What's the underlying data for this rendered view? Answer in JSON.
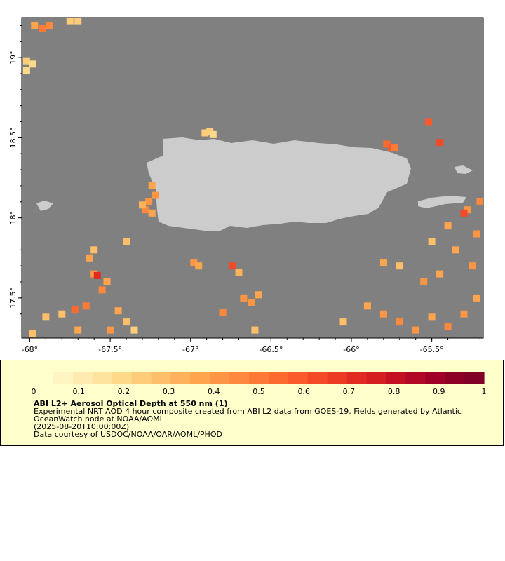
{
  "map": {
    "lon_range": [
      -68.05,
      -65.18
    ],
    "lat_range": [
      17.25,
      19.25
    ],
    "lon_ticks": [
      -68,
      -67.5,
      -67,
      -66.5,
      -66,
      -65.5
    ],
    "lon_tick_labels": [
      "-68°",
      "-67.5°",
      "-67°",
      "-66.5°",
      "-66°",
      "-65.5°"
    ],
    "lat_ticks": [
      17.5,
      18,
      18.5,
      19
    ],
    "lat_tick_labels": [
      "17.5°",
      "18°",
      "18.5°",
      "19°"
    ],
    "colors": {
      "ocean_nodata": "#808080",
      "land": "#cccccc",
      "panel_background": "#ffffcc"
    }
  },
  "colorbar": {
    "min": 0,
    "max": 1,
    "tick_values": [
      0,
      0.1,
      0.2,
      0.3,
      0.4,
      0.5,
      0.6,
      0.7,
      0.8,
      0.9,
      1
    ],
    "tick_labels": [
      "0",
      "0.1",
      "0.2",
      "0.3",
      "0.4",
      "0.5",
      "0.6",
      "0.7",
      "0.8",
      "0.9",
      "1"
    ],
    "colors": [
      "#ffffcc",
      "#fff5c2",
      "#ffebb0",
      "#fee39e",
      "#fed98a",
      "#fecc7a",
      "#febf6a",
      "#feb25c",
      "#fea54e",
      "#fd9644",
      "#fd883e",
      "#fd7a36",
      "#fc6a30",
      "#fa5a2c",
      "#f44a27",
      "#ec3a23",
      "#e22b20",
      "#d41e20",
      "#c41122",
      "#b20826",
      "#a00026",
      "#8c0026",
      "#800026"
    ]
  },
  "legend": {
    "title": "ABI L2+ Aerosol Optical Depth at 550 nm (1)",
    "line1": "Experimental NRT AOD 4 hour composite created from ABI L2 data from GOES-19. Fields generated by Atlantic",
    "line2": "OceanWatch node at NOAA/AOML",
    "line3": "(2025-08-20T10:00:00Z)",
    "line4": "Data courtesy of USDOC/NOAA/OAR/AOML/PHOD"
  },
  "aod_cells": [
    {
      "lon": -67.97,
      "lat": 19.2,
      "aod": 0.35
    },
    {
      "lon": -67.92,
      "lat": 19.18,
      "aod": 0.5
    },
    {
      "lon": -67.88,
      "lat": 19.2,
      "aod": 0.45
    },
    {
      "lon": -67.75,
      "lat": 19.23,
      "aod": 0.25
    },
    {
      "lon": -67.7,
      "lat": 19.23,
      "aod": 0.22
    },
    {
      "lon": -68.02,
      "lat": 18.98,
      "aod": 0.22
    },
    {
      "lon": -67.98,
      "lat": 18.96,
      "aod": 0.2
    },
    {
      "lon": -68.02,
      "lat": 18.92,
      "aod": 0.18
    },
    {
      "lon": -66.91,
      "lat": 18.53,
      "aod": 0.22
    },
    {
      "lon": -66.88,
      "lat": 18.54,
      "aod": 0.25
    },
    {
      "lon": -66.86,
      "lat": 18.52,
      "aod": 0.2
    },
    {
      "lon": -65.78,
      "lat": 18.46,
      "aod": 0.55
    },
    {
      "lon": -65.75,
      "lat": 18.44,
      "aod": 0.6
    },
    {
      "lon": -65.73,
      "lat": 18.44,
      "aod": 0.48
    },
    {
      "lon": -65.45,
      "lat": 18.47,
      "aod": 0.62
    },
    {
      "lon": -65.52,
      "lat": 18.6,
      "aod": 0.58
    },
    {
      "lon": -67.24,
      "lat": 18.2,
      "aod": 0.38
    },
    {
      "lon": -67.22,
      "lat": 18.14,
      "aod": 0.42
    },
    {
      "lon": -67.26,
      "lat": 18.1,
      "aod": 0.4
    },
    {
      "lon": -67.28,
      "lat": 18.05,
      "aod": 0.45
    },
    {
      "lon": -67.24,
      "lat": 18.03,
      "aod": 0.35
    },
    {
      "lon": -67.3,
      "lat": 18.08,
      "aod": 0.32
    },
    {
      "lon": -66.98,
      "lat": 17.72,
      "aod": 0.4
    },
    {
      "lon": -66.95,
      "lat": 17.7,
      "aod": 0.35
    },
    {
      "lon": -66.74,
      "lat": 17.7,
      "aod": 0.62
    },
    {
      "lon": -66.7,
      "lat": 17.66,
      "aod": 0.32
    },
    {
      "lon": -66.58,
      "lat": 17.52,
      "aod": 0.35
    },
    {
      "lon": -66.62,
      "lat": 17.47,
      "aod": 0.4
    },
    {
      "lon": -66.67,
      "lat": 17.5,
      "aod": 0.42
    },
    {
      "lon": -66.8,
      "lat": 17.41,
      "aod": 0.45
    },
    {
      "lon": -66.6,
      "lat": 17.3,
      "aod": 0.3
    },
    {
      "lon": -67.63,
      "lat": 17.75,
      "aod": 0.35
    },
    {
      "lon": -67.6,
      "lat": 17.65,
      "aod": 0.4
    },
    {
      "lon": -67.58,
      "lat": 17.64,
      "aod": 0.7
    },
    {
      "lon": -67.52,
      "lat": 17.6,
      "aod": 0.38
    },
    {
      "lon": -67.55,
      "lat": 17.55,
      "aod": 0.45
    },
    {
      "lon": -67.65,
      "lat": 17.45,
      "aod": 0.5
    },
    {
      "lon": -67.72,
      "lat": 17.43,
      "aod": 0.55
    },
    {
      "lon": -67.8,
      "lat": 17.4,
      "aod": 0.3
    },
    {
      "lon": -67.9,
      "lat": 17.38,
      "aod": 0.28
    },
    {
      "lon": -67.45,
      "lat": 17.42,
      "aod": 0.35
    },
    {
      "lon": -67.4,
      "lat": 17.35,
      "aod": 0.3
    },
    {
      "lon": -67.35,
      "lat": 17.3,
      "aod": 0.25
    },
    {
      "lon": -67.98,
      "lat": 17.28,
      "aod": 0.3
    },
    {
      "lon": -67.7,
      "lat": 17.3,
      "aod": 0.35
    },
    {
      "lon": -67.5,
      "lat": 17.3,
      "aod": 0.4
    },
    {
      "lon": -67.6,
      "lat": 17.8,
      "aod": 0.3
    },
    {
      "lon": -67.4,
      "lat": 17.85,
      "aod": 0.28
    },
    {
      "lon": -66.05,
      "lat": 17.35,
      "aod": 0.3
    },
    {
      "lon": -65.9,
      "lat": 17.45,
      "aod": 0.35
    },
    {
      "lon": -65.8,
      "lat": 17.4,
      "aod": 0.4
    },
    {
      "lon": -65.7,
      "lat": 17.35,
      "aod": 0.45
    },
    {
      "lon": -65.6,
      "lat": 17.3,
      "aod": 0.4
    },
    {
      "lon": -65.5,
      "lat": 17.38,
      "aod": 0.35
    },
    {
      "lon": -65.4,
      "lat": 17.32,
      "aod": 0.45
    },
    {
      "lon": -65.3,
      "lat": 17.4,
      "aod": 0.4
    },
    {
      "lon": -65.22,
      "lat": 17.5,
      "aod": 0.35
    },
    {
      "lon": -65.25,
      "lat": 17.7,
      "aod": 0.4
    },
    {
      "lon": -65.35,
      "lat": 17.8,
      "aod": 0.38
    },
    {
      "lon": -65.22,
      "lat": 17.9,
      "aod": 0.42
    },
    {
      "lon": -65.4,
      "lat": 17.95,
      "aod": 0.35
    },
    {
      "lon": -65.28,
      "lat": 18.05,
      "aod": 0.4
    },
    {
      "lon": -65.2,
      "lat": 18.1,
      "aod": 0.45
    },
    {
      "lon": -65.7,
      "lat": 17.7,
      "aod": 0.3
    },
    {
      "lon": -65.8,
      "lat": 17.72,
      "aod": 0.35
    },
    {
      "lon": -65.55,
      "lat": 17.6,
      "aod": 0.4
    },
    {
      "lon": -65.45,
      "lat": 17.65,
      "aod": 0.35
    },
    {
      "lon": -65.5,
      "lat": 17.85,
      "aod": 0.3
    },
    {
      "lon": -65.3,
      "lat": 18.03,
      "aod": 0.62
    }
  ]
}
